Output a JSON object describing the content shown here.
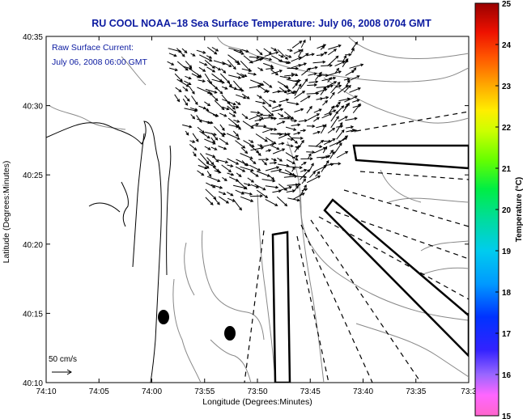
{
  "title": "RU COOL  NOAA−18  Sea Surface Temperature:  July 06, 2008 0704 GMT",
  "annotation": {
    "line1": "Raw Surface Current:",
    "line2": "July 06, 2008 06:00 GMT"
  },
  "scale_label": "50 cm/s",
  "axes": {
    "xlabel": "Longitude (Degrees:Minutes)",
    "ylabel": "Latitude (Degrees:Minutes)",
    "xticks": [
      "74:10",
      "74:05",
      "74:00",
      "73:55",
      "73:50",
      "73:45",
      "73:40",
      "73:35",
      "73:3"
    ],
    "yticks": [
      "40:35",
      "40:30",
      "40:25",
      "40:20",
      "40:15",
      "40:10"
    ]
  },
  "colorbar": {
    "label": "Temperature (°C)",
    "ticks": [
      "25",
      "24",
      "23",
      "22",
      "21",
      "20",
      "19",
      "18",
      "17",
      "16",
      "15"
    ],
    "min": 15,
    "max": 25
  },
  "colors": {
    "title_text": "#0b1aa0",
    "land_outline": "#000000",
    "bathymetry": "#888888"
  }
}
